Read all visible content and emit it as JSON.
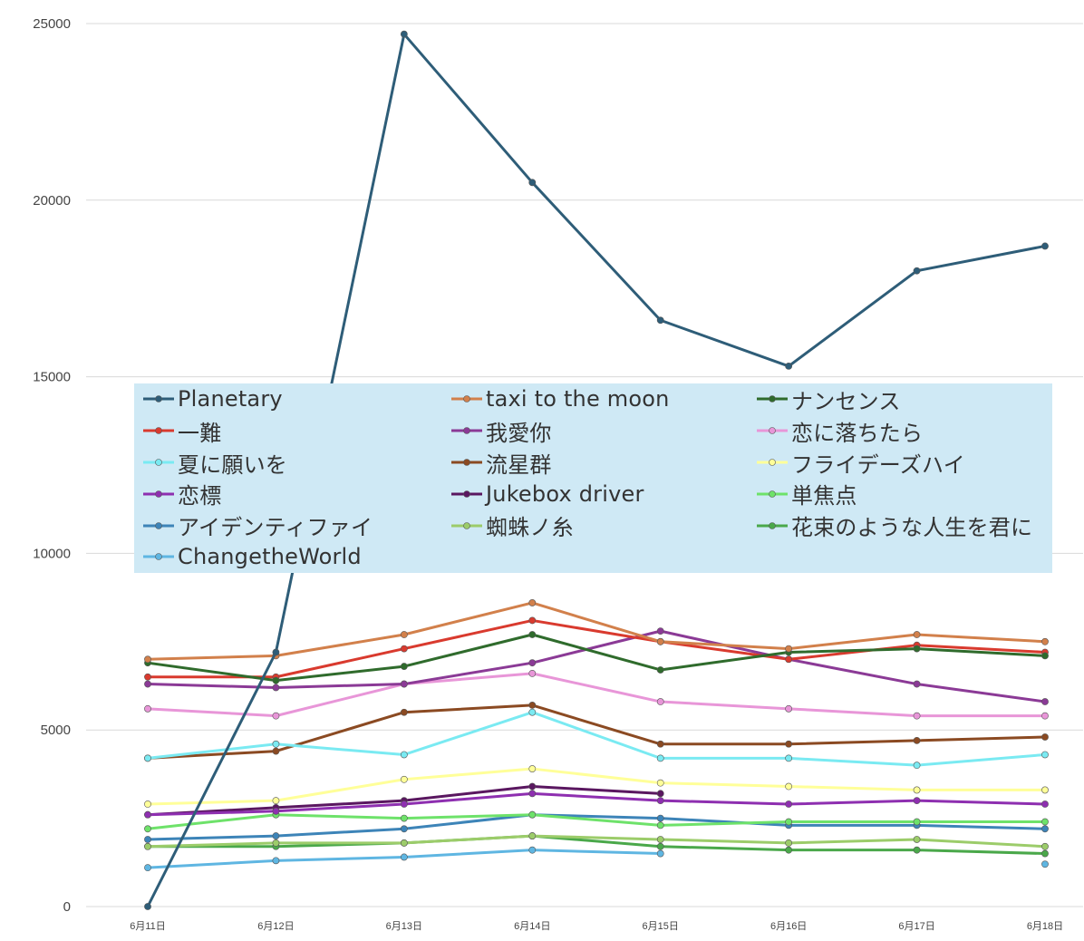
{
  "chart_data": {
    "type": "line",
    "categories": [
      "6月11日",
      "6月12日",
      "6月13日",
      "6月14日",
      "6月15日",
      "6月16日",
      "6月17日",
      "6月18日"
    ],
    "ylim": [
      0,
      25000
    ],
    "yticks": [
      "0",
      "5000",
      "10000",
      "15000",
      "20000",
      "25000"
    ],
    "grid": true,
    "legend_position": "center-overlay",
    "series": [
      {
        "name": "Planetary",
        "color": "#2e5d78",
        "values": [
          0,
          7200,
          24700,
          20500,
          16600,
          15300,
          18000,
          18700
        ]
      },
      {
        "name": "taxi to the moon",
        "color": "#d2804b",
        "values": [
          7000,
          7100,
          7700,
          8600,
          7500,
          7300,
          7700,
          7500
        ]
      },
      {
        "name": "ナンセンス",
        "color": "#2f6b2c",
        "values": [
          6900,
          6400,
          6800,
          7700,
          6700,
          7200,
          7300,
          7100
        ]
      },
      {
        "name": "一難",
        "color": "#d93a2e",
        "values": [
          6500,
          6500,
          7300,
          8100,
          7500,
          7000,
          7400,
          7200
        ]
      },
      {
        "name": "我愛你",
        "color": "#8b3a96",
        "values": [
          6300,
          6200,
          6300,
          6900,
          7800,
          7000,
          6300,
          5800
        ]
      },
      {
        "name": "恋に落ちたら",
        "color": "#e896d8",
        "values": [
          5600,
          5400,
          6300,
          6600,
          5800,
          5600,
          5400,
          5400
        ]
      },
      {
        "name": "夏に願いを",
        "color": "#7aeaf2",
        "values": [
          4200,
          4600,
          4300,
          5500,
          4200,
          4200,
          4000,
          4300
        ]
      },
      {
        "name": "流星群",
        "color": "#8b4a22",
        "values": [
          4200,
          4400,
          5500,
          5700,
          4600,
          4600,
          4700,
          4800
        ]
      },
      {
        "name": "フライデーズハイ",
        "color": "#ffff99",
        "values": [
          2900,
          3000,
          3600,
          3900,
          3500,
          3400,
          3300,
          3300
        ]
      },
      {
        "name": "恋標",
        "color": "#8e2fb0",
        "values": [
          2600,
          2700,
          2900,
          3200,
          3000,
          2900,
          3000,
          2900
        ]
      },
      {
        "name": "Jukebox driver",
        "color": "#5a1760",
        "values": [
          2600,
          2800,
          3000,
          3400,
          3200,
          null,
          null,
          null
        ]
      },
      {
        "name": "単焦点",
        "color": "#6ee26a",
        "values": [
          2200,
          2600,
          2500,
          2600,
          2300,
          2400,
          2400,
          2400
        ]
      },
      {
        "name": "アイデンティファイ",
        "color": "#3d84b8",
        "values": [
          1900,
          2000,
          2200,
          2600,
          2500,
          2300,
          2300,
          2200
        ]
      },
      {
        "name": "蜘蛛ノ糸",
        "color": "#9ccc6a",
        "values": [
          1700,
          1800,
          1800,
          2000,
          1900,
          1800,
          1900,
          1700
        ]
      },
      {
        "name": "花束のような人生を君に",
        "color": "#4aa84a",
        "values": [
          1700,
          1700,
          1800,
          2000,
          1700,
          1600,
          1600,
          1500
        ]
      },
      {
        "name": "ChangetheWorld",
        "color": "#5fb6e2",
        "values": [
          1100,
          1300,
          1400,
          1600,
          1500,
          null,
          null,
          1200
        ]
      }
    ]
  }
}
